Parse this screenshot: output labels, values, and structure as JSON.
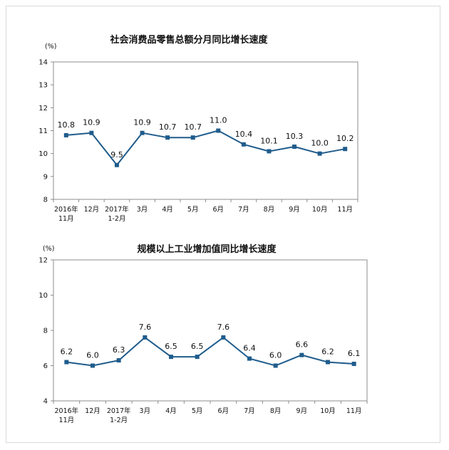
{
  "chart_data": [
    {
      "type": "line",
      "title": "社会消费品零售总额分月同比增长速度",
      "unit": "(%)",
      "categories": [
        [
          "2016年",
          "11月"
        ],
        [
          "12月"
        ],
        [
          "2017年",
          "1-2月"
        ],
        [
          "3月"
        ],
        [
          "4月"
        ],
        [
          "5月"
        ],
        [
          "6月"
        ],
        [
          "7月"
        ],
        [
          "8月"
        ],
        [
          "9月"
        ],
        [
          "10月"
        ],
        [
          "11月"
        ]
      ],
      "values": [
        10.8,
        10.9,
        9.5,
        10.9,
        10.7,
        10.7,
        11.0,
        10.4,
        10.1,
        10.3,
        10.0,
        10.2
      ],
      "value_labels": [
        "10.8",
        "10.9",
        "9.5",
        "10.9",
        "10.7",
        "10.7",
        "11.0",
        "10.4",
        "10.1",
        "10.3",
        "10.0",
        "10.2"
      ],
      "ylim": [
        8,
        14
      ],
      "yticks": [
        8,
        9,
        10,
        11,
        12,
        13,
        14
      ],
      "line_color": "#1f5c8c",
      "grid": false
    },
    {
      "type": "line",
      "title": "规模以上工业增加值同比增长速度",
      "unit": "(%)",
      "categories": [
        [
          "2016年",
          "11月"
        ],
        [
          "12月"
        ],
        [
          "2017年",
          "1-2月"
        ],
        [
          "3月"
        ],
        [
          "4月"
        ],
        [
          "5月"
        ],
        [
          "6月"
        ],
        [
          "7月"
        ],
        [
          "8月"
        ],
        [
          "9月"
        ],
        [
          "10月"
        ],
        [
          "11月"
        ]
      ],
      "values": [
        6.2,
        6.0,
        6.3,
        7.6,
        6.5,
        6.5,
        7.6,
        6.4,
        6.0,
        6.6,
        6.2,
        6.1
      ],
      "value_labels": [
        "6.2",
        "6.0",
        "6.3",
        "7.6",
        "6.5",
        "6.5",
        "7.6",
        "6.4",
        "6.0",
        "6.6",
        "6.2",
        "6.1"
      ],
      "ylim": [
        4,
        12
      ],
      "yticks": [
        4,
        6,
        8,
        10,
        12
      ],
      "line_color": "#1f5c8c",
      "grid": false
    }
  ]
}
